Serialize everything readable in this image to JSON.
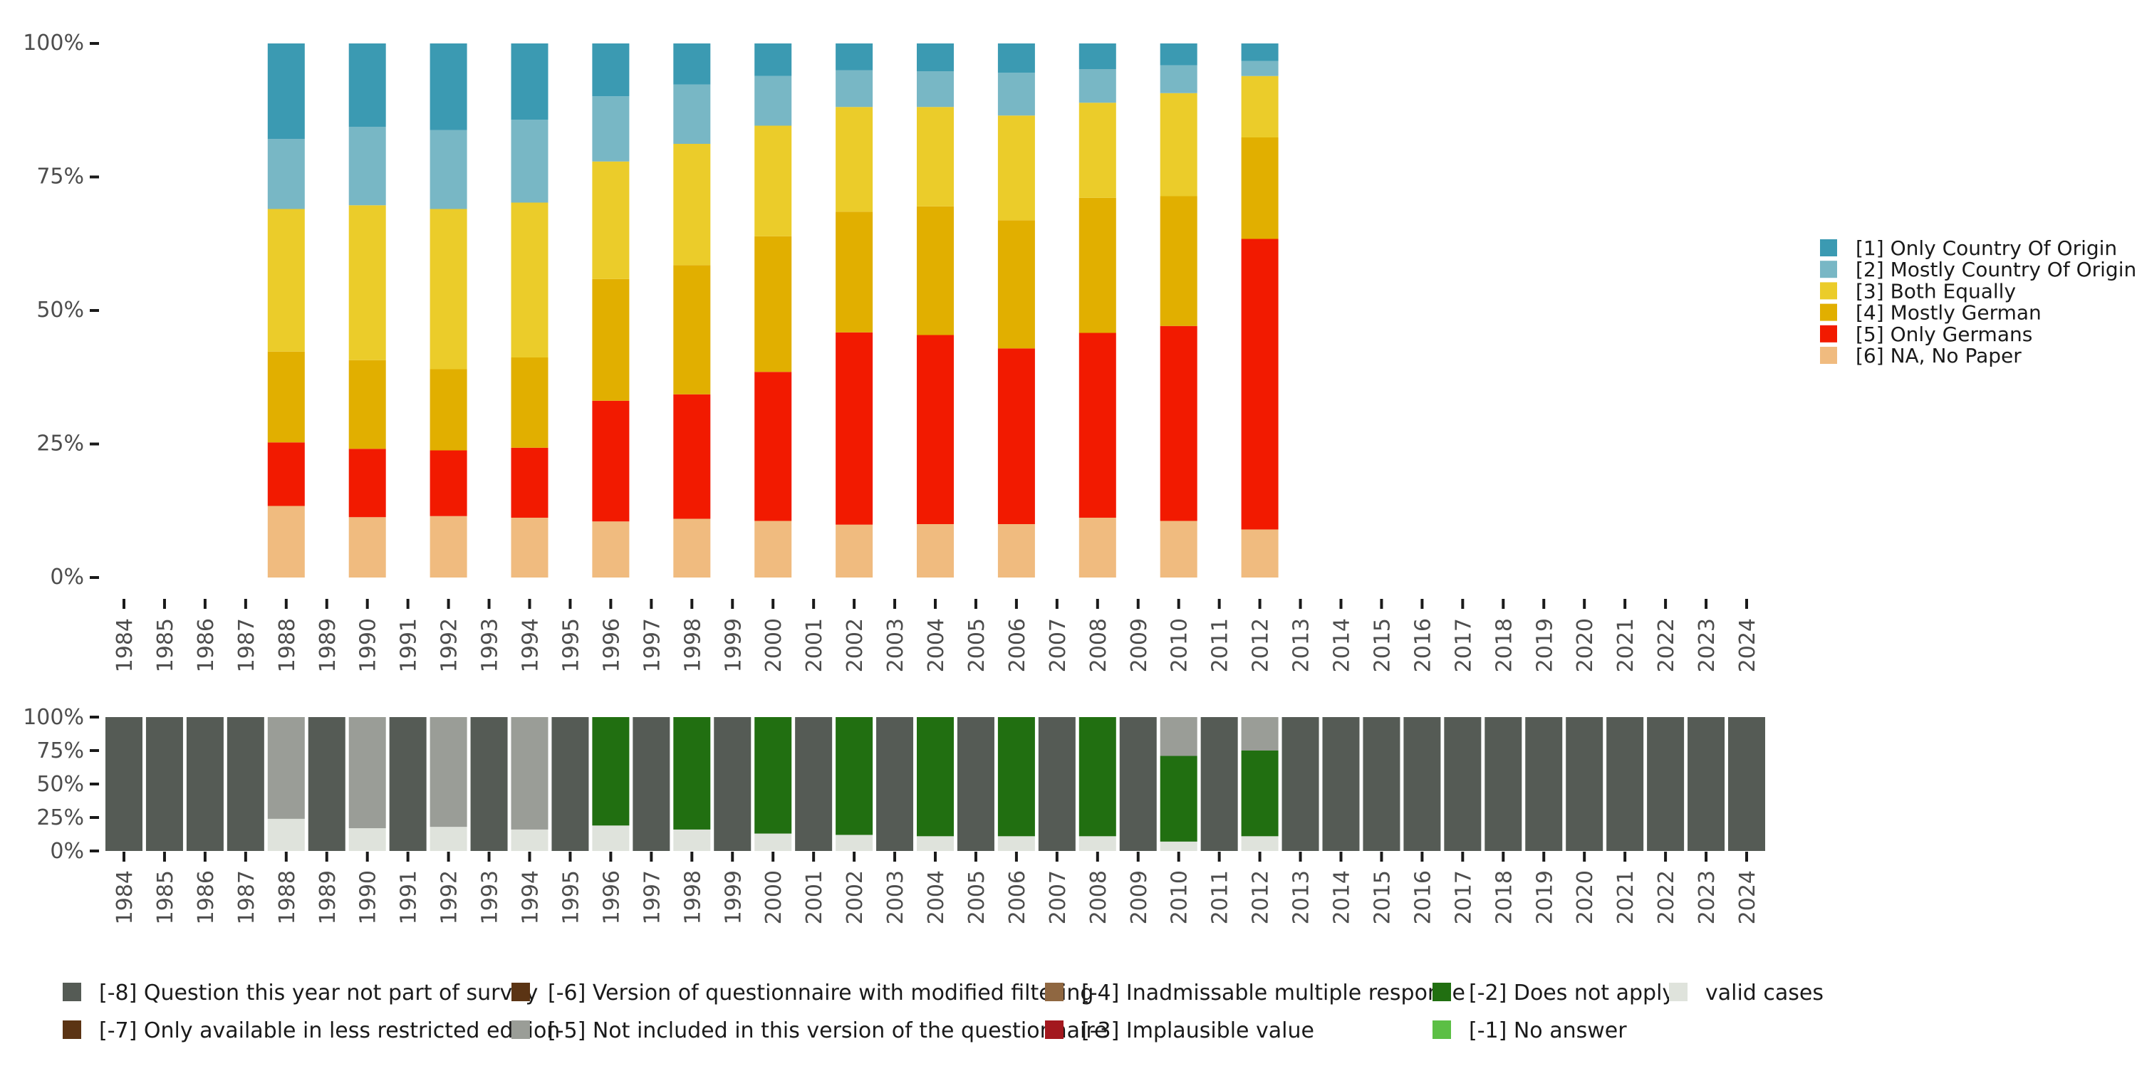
{
  "chart_data": [
    {
      "id": "main",
      "type": "bar",
      "stacked": true,
      "categories": [
        "1984",
        "1985",
        "1986",
        "1987",
        "1988",
        "1989",
        "1990",
        "1991",
        "1992",
        "1993",
        "1994",
        "1995",
        "1996",
        "1997",
        "1998",
        "1999",
        "2000",
        "2001",
        "2002",
        "2003",
        "2004",
        "2005",
        "2006",
        "2007",
        "2008",
        "2009",
        "2010",
        "2011",
        "2012",
        "2013",
        "2014",
        "2015",
        "2016",
        "2017",
        "2018",
        "2019",
        "2020",
        "2021",
        "2022",
        "2023",
        "2024"
      ],
      "y_ticks": [
        "0%",
        "25%",
        "50%",
        "75%",
        "100%"
      ],
      "ylim": [
        0,
        100
      ],
      "series": [
        {
          "name": "[6] NA, No Paper",
          "color": "#f0bb7f",
          "values": {
            "1988": 13.4,
            "1990": 11.3,
            "1992": 11.5,
            "1994": 11.2,
            "1996": 10.5,
            "1998": 11.0,
            "2000": 10.6,
            "2002": 9.9,
            "2004": 10.0,
            "2006": 10.0,
            "2008": 11.2,
            "2010": 10.6,
            "2012": 9.0
          }
        },
        {
          "name": "[5] Only Germans",
          "color": "#f21a00",
          "values": {
            "1988": 11.9,
            "1990": 12.8,
            "1992": 12.3,
            "1994": 13.1,
            "1996": 22.6,
            "1998": 23.3,
            "2000": 27.9,
            "2002": 36.0,
            "2004": 35.4,
            "2006": 32.9,
            "2008": 34.6,
            "2010": 36.5,
            "2012": 54.4
          }
        },
        {
          "name": "[4] Mostly German",
          "color": "#e1af00",
          "values": {
            "1988": 17.0,
            "1990": 16.6,
            "1992": 15.2,
            "1994": 16.9,
            "1996": 22.8,
            "1998": 24.2,
            "2000": 25.4,
            "2002": 22.6,
            "2004": 24.1,
            "2006": 24.0,
            "2008": 25.3,
            "2010": 24.3,
            "2012": 19.0
          }
        },
        {
          "name": "[3] Both Equally",
          "color": "#ebcc2a",
          "values": {
            "1988": 26.7,
            "1990": 29.0,
            "1992": 30.0,
            "1994": 29.0,
            "1996": 22.0,
            "1998": 22.7,
            "2000": 20.7,
            "2002": 19.6,
            "2004": 18.6,
            "2006": 19.6,
            "2008": 17.8,
            "2010": 19.3,
            "2012": 11.5
          }
        },
        {
          "name": "[2] Mostly Country Of Origin",
          "color": "#78b7c5",
          "values": {
            "1988": 13.1,
            "1990": 14.7,
            "1992": 14.8,
            "1994": 15.5,
            "1996": 12.2,
            "1998": 11.1,
            "2000": 9.3,
            "2002": 6.9,
            "2004": 6.7,
            "2006": 8.0,
            "2008": 6.3,
            "2010": 5.2,
            "2012": 2.8
          }
        },
        {
          "name": "[1] Only Country Of Origin",
          "color": "#3b9ab2",
          "values": {
            "1988": 17.9,
            "1990": 15.6,
            "1992": 16.2,
            "1994": 14.3,
            "1996": 9.9,
            "1998": 7.7,
            "2000": 6.1,
            "2002": 5.0,
            "2004": 5.2,
            "2006": 5.5,
            "2008": 4.8,
            "2010": 4.1,
            "2012": 3.3
          }
        }
      ],
      "legend": {
        "position": "right",
        "order": [
          "[1] Only Country Of Origin",
          "[2] Mostly Country Of Origin",
          "[3] Both Equally",
          "[4] Mostly German",
          "[5] Only Germans",
          "[6] NA, No Paper"
        ]
      }
    },
    {
      "id": "missing",
      "type": "bar",
      "stacked": true,
      "categories": [
        "1984",
        "1985",
        "1986",
        "1987",
        "1988",
        "1989",
        "1990",
        "1991",
        "1992",
        "1993",
        "1994",
        "1995",
        "1996",
        "1997",
        "1998",
        "1999",
        "2000",
        "2001",
        "2002",
        "2003",
        "2004",
        "2005",
        "2006",
        "2007",
        "2008",
        "2009",
        "2010",
        "2011",
        "2012",
        "2013",
        "2014",
        "2015",
        "2016",
        "2017",
        "2018",
        "2019",
        "2020",
        "2021",
        "2022",
        "2023",
        "2024"
      ],
      "y_ticks": [
        "0%",
        "25%",
        "50%",
        "75%",
        "100%"
      ],
      "ylim": [
        0,
        100
      ],
      "series": [
        {
          "name": "valid cases",
          "color": "#dfe3dc",
          "values": {
            "1988": 24,
            "1990": 17,
            "1992": 18,
            "1994": 16,
            "1996": 19,
            "1998": 16,
            "2000": 13,
            "2002": 12,
            "2004": 11,
            "2006": 11,
            "2008": 11,
            "2010": 7,
            "2012": 11
          }
        },
        {
          "name": "[-2] Does not apply",
          "color": "#216f11",
          "values": {
            "1996": 81,
            "1998": 84,
            "2000": 87,
            "2002": 88,
            "2004": 89,
            "2006": 89,
            "2008": 89,
            "2010": 64,
            "2012": 64
          }
        },
        {
          "name": "[-5] Not included in this version of the questionnaire",
          "color": "#9a9d97",
          "values": {
            "1988": 76,
            "1990": 83,
            "1992": 82,
            "1994": 84,
            "2010": 29,
            "2012": 25
          }
        },
        {
          "name": "[-8] Question this year not part of survey",
          "color": "#555b55",
          "values": {
            "1984": 100,
            "1985": 100,
            "1986": 100,
            "1987": 100,
            "1989": 100,
            "1991": 100,
            "1993": 100,
            "1995": 100,
            "1997": 100,
            "1999": 100,
            "2001": 100,
            "2003": 100,
            "2005": 100,
            "2007": 100,
            "2009": 100,
            "2011": 100,
            "2013": 100,
            "2014": 100,
            "2015": 100,
            "2016": 100,
            "2017": 100,
            "2018": 100,
            "2019": 100,
            "2020": 100,
            "2021": 100,
            "2022": 100,
            "2023": 100,
            "2024": 100
          }
        }
      ],
      "legend": {
        "position": "bottom",
        "items": [
          {
            "label": "[-8] Question this year not part of survey",
            "color": "#555b55"
          },
          {
            "label": "[-7] Only available in less restricted edition",
            "color": "#5b3414"
          },
          {
            "label": "[-6] Version of questionnaire with modified filtering",
            "color": "#5b3414"
          },
          {
            "label": "[-5] Not included in this version of the questionnaire",
            "color": "#9a9d97"
          },
          {
            "label": "[-4] Inadmissable multiple response",
            "color": "#8f6741"
          },
          {
            "label": "[-3] Implausible value",
            "color": "#a3181e"
          },
          {
            "label": "[-2] Does not apply",
            "color": "#216f11"
          },
          {
            "label": "[-1] No answer",
            "color": "#5cbf45"
          },
          {
            "label": "valid cases",
            "color": "#dfe3dc"
          }
        ]
      }
    }
  ]
}
